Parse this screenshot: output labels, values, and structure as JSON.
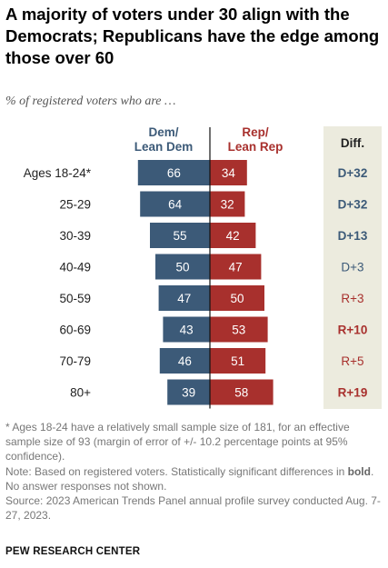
{
  "title": "A majority of voters under 30 align with the Democrats; Republicans have the edge among those over 60",
  "subtitle": "% of registered voters who are …",
  "headers": {
    "dem_line1": "Dem/",
    "dem_line2": "Lean Dem",
    "rep_line1": "Rep/",
    "rep_line2": "Lean Rep",
    "diff": "Diff."
  },
  "colors": {
    "dem": "#3c5a78",
    "rep": "#a8302d",
    "diff_panel": "#ecebde"
  },
  "chart_data": {
    "type": "bar",
    "orientation": "diverging-horizontal",
    "categories": [
      "Ages 18-24*",
      "25-29",
      "30-39",
      "40-49",
      "50-59",
      "60-69",
      "70-79",
      "80+"
    ],
    "series": [
      {
        "name": "Dem/Lean Dem",
        "values": [
          66,
          64,
          55,
          50,
          47,
          43,
          46,
          39
        ]
      },
      {
        "name": "Rep/Lean Rep",
        "values": [
          34,
          32,
          42,
          47,
          50,
          53,
          51,
          58
        ]
      }
    ],
    "diff": [
      {
        "label": "D+32",
        "party": "dem",
        "significant": true
      },
      {
        "label": "D+32",
        "party": "dem",
        "significant": true
      },
      {
        "label": "D+13",
        "party": "dem",
        "significant": true
      },
      {
        "label": "D+3",
        "party": "dem",
        "significant": false
      },
      {
        "label": "R+3",
        "party": "rep",
        "significant": false
      },
      {
        "label": "R+10",
        "party": "rep",
        "significant": true
      },
      {
        "label": "R+5",
        "party": "rep",
        "significant": false
      },
      {
        "label": "R+19",
        "party": "rep",
        "significant": true
      }
    ]
  },
  "notes": {
    "asterisk": "* Ages 18-24 have a relatively small sample size of 181, for an effective sample size of 93 (margin of error of +/- 10.2 percentage points at 95% confidence).",
    "note_before_bold": "Note: Based on registered voters. Statistically significant differences in ",
    "note_bold": "bold",
    "note_after_bold": ". No answer responses not shown.",
    "source": "Source: 2023 American Trends Panel annual profile survey conducted Aug. 7-27, 2023."
  },
  "org": "PEW RESEARCH CENTER"
}
